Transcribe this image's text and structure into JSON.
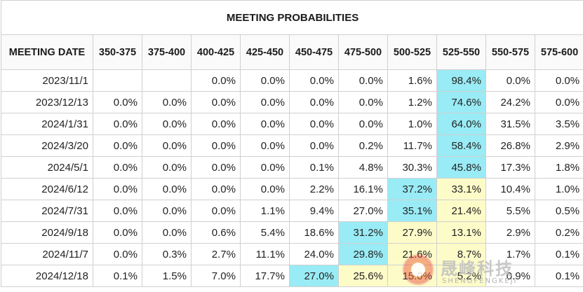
{
  "title": "MEETING PROBABILITIES",
  "columns": [
    "MEETING DATE",
    "350-375",
    "375-400",
    "400-425",
    "425-450",
    "450-475",
    "475-500",
    "500-525",
    "525-550",
    "550-575",
    "575-600"
  ],
  "colors": {
    "highlight_blue": "#99ebf5",
    "highlight_yellow": "#fdfbc8"
  },
  "rows": [
    {
      "date": "2023/11/1",
      "values": [
        "",
        "",
        "0.0%",
        "0.0%",
        "0.0%",
        "0.0%",
        "1.6%",
        "98.4%",
        "0.0%",
        "0.0%"
      ],
      "highlights": [
        "",
        "",
        "",
        "",
        "",
        "",
        "",
        "blue",
        "",
        ""
      ]
    },
    {
      "date": "2023/12/13",
      "values": [
        "0.0%",
        "0.0%",
        "0.0%",
        "0.0%",
        "0.0%",
        "0.0%",
        "1.2%",
        "74.6%",
        "24.2%",
        "0.0%"
      ],
      "highlights": [
        "",
        "",
        "",
        "",
        "",
        "",
        "",
        "blue",
        "",
        ""
      ]
    },
    {
      "date": "2024/1/31",
      "values": [
        "0.0%",
        "0.0%",
        "0.0%",
        "0.0%",
        "0.0%",
        "0.0%",
        "1.0%",
        "64.0%",
        "31.5%",
        "3.5%"
      ],
      "highlights": [
        "",
        "",
        "",
        "",
        "",
        "",
        "",
        "blue",
        "",
        ""
      ]
    },
    {
      "date": "2024/3/20",
      "values": [
        "0.0%",
        "0.0%",
        "0.0%",
        "0.0%",
        "0.0%",
        "0.2%",
        "11.7%",
        "58.4%",
        "26.8%",
        "2.9%"
      ],
      "highlights": [
        "",
        "",
        "",
        "",
        "",
        "",
        "",
        "blue",
        "",
        ""
      ]
    },
    {
      "date": "2024/5/1",
      "values": [
        "0.0%",
        "0.0%",
        "0.0%",
        "0.0%",
        "0.1%",
        "4.8%",
        "30.3%",
        "45.8%",
        "17.3%",
        "1.8%"
      ],
      "highlights": [
        "",
        "",
        "",
        "",
        "",
        "",
        "",
        "blue",
        "",
        ""
      ]
    },
    {
      "date": "2024/6/12",
      "values": [
        "0.0%",
        "0.0%",
        "0.0%",
        "0.0%",
        "2.2%",
        "16.1%",
        "37.2%",
        "33.1%",
        "10.4%",
        "1.0%"
      ],
      "highlights": [
        "",
        "",
        "",
        "",
        "",
        "",
        "blue",
        "yellow",
        "",
        ""
      ]
    },
    {
      "date": "2024/7/31",
      "values": [
        "0.0%",
        "0.0%",
        "0.0%",
        "1.1%",
        "9.4%",
        "27.0%",
        "35.1%",
        "21.4%",
        "5.5%",
        "0.5%"
      ],
      "highlights": [
        "",
        "",
        "",
        "",
        "",
        "",
        "blue",
        "yellow",
        "",
        ""
      ]
    },
    {
      "date": "2024/9/18",
      "values": [
        "0.0%",
        "0.0%",
        "0.6%",
        "5.4%",
        "18.6%",
        "31.2%",
        "27.9%",
        "13.1%",
        "2.9%",
        "0.2%"
      ],
      "highlights": [
        "",
        "",
        "",
        "",
        "",
        "blue",
        "yellow",
        "yellow",
        "",
        ""
      ]
    },
    {
      "date": "2024/11/7",
      "values": [
        "0.0%",
        "0.3%",
        "2.7%",
        "11.1%",
        "24.0%",
        "29.8%",
        "21.6%",
        "8.7%",
        "1.7%",
        "0.1%"
      ],
      "highlights": [
        "",
        "",
        "",
        "",
        "",
        "blue",
        "yellow",
        "yellow",
        "",
        ""
      ]
    },
    {
      "date": "2024/12/18",
      "values": [
        "0.1%",
        "1.5%",
        "7.0%",
        "17.7%",
        "27.0%",
        "25.6%",
        "15.0%",
        "5.2%",
        "0.9%",
        "0.1%"
      ],
      "highlights": [
        "",
        "",
        "",
        "",
        "blue",
        "yellow",
        "yellow",
        "yellow",
        "",
        ""
      ]
    }
  ],
  "watermark": {
    "text": "晟峰科技",
    "subtext": "SHENGFENGKEJI",
    "logo_icon": "watermark-logo-icon"
  }
}
